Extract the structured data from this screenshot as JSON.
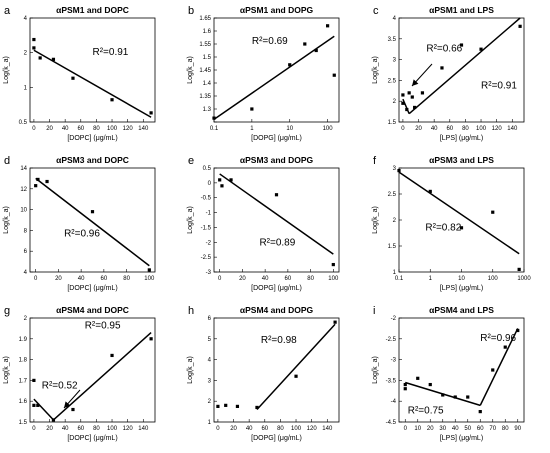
{
  "chart_data": [
    {
      "type": "scatter",
      "panel_label": "a",
      "title": "αPSM1 and DOPC",
      "xlabel": "[DOPC] (μg/mL)",
      "ylabel": "Log(k_a)",
      "xscale": "linear",
      "yscale": "log",
      "xlim": [
        -5,
        155
      ],
      "ylim": [
        0.5,
        4
      ],
      "xticks": [
        0,
        20,
        40,
        60,
        80,
        100,
        120,
        140
      ],
      "yticks": [
        0.5,
        1,
        2,
        4
      ],
      "ytick_labels": [
        "0.5",
        "1",
        "2",
        "4"
      ],
      "points": [
        [
          0,
          2.6
        ],
        [
          0,
          2.2
        ],
        [
          8,
          1.8
        ],
        [
          25,
          1.75
        ],
        [
          50,
          1.2
        ],
        [
          100,
          0.78
        ],
        [
          150,
          0.6
        ]
      ],
      "fits": [
        {
          "x": [
            0,
            150
          ],
          "y": [
            2.1,
            0.55
          ]
        }
      ],
      "annotations": [
        {
          "text": "R²=0.91",
          "x": 75,
          "y": 1.9
        }
      ]
    },
    {
      "type": "scatter",
      "panel_label": "b",
      "title": "αPSM1 and DOPG",
      "xlabel": "[DOPG] (μg/mL)",
      "ylabel": "Log(k_a)",
      "xscale": "log",
      "yscale": "linear",
      "xlim": [
        0.1,
        200
      ],
      "ylim": [
        1.25,
        1.65
      ],
      "xticks": [
        0.1,
        1,
        10,
        100
      ],
      "yticks": [
        1.25,
        1.3,
        1.35,
        1.4,
        1.45,
        1.5,
        1.55,
        1.6,
        1.65
      ],
      "ytick_labels": [
        "",
        "1.3",
        "1.35",
        "1.4",
        "1.45",
        "1.5",
        "1.55",
        "1.6",
        "1.65"
      ],
      "points": [
        [
          0.1,
          1.265
        ],
        [
          1,
          1.3
        ],
        [
          10,
          1.47
        ],
        [
          25,
          1.55
        ],
        [
          50,
          1.525
        ],
        [
          100,
          1.62
        ],
        [
          150,
          1.43
        ]
      ],
      "fits": [
        {
          "x": [
            0.1,
            150
          ],
          "y": [
            1.26,
            1.58
          ]
        }
      ],
      "annotations": [
        {
          "text": "R²=0.69",
          "x": 1,
          "y": 1.55
        }
      ]
    },
    {
      "type": "scatter",
      "panel_label": "c",
      "title": "αPSM1 and LPS",
      "xlabel": "[LPS] (μg/mL)",
      "ylabel": "Log(k_a)",
      "xscale": "linear",
      "yscale": "linear",
      "xlim": [
        -5,
        155
      ],
      "ylim": [
        1.5,
        4
      ],
      "xticks": [
        0,
        20,
        40,
        60,
        80,
        100,
        120,
        140
      ],
      "yticks": [
        1.5,
        2,
        2.5,
        3,
        3.5,
        4
      ],
      "ytick_labels": [
        "1.5",
        "2",
        "2.5",
        "3",
        "3.5",
        "4"
      ],
      "points": [
        [
          0,
          2.15
        ],
        [
          0,
          1.95
        ],
        [
          5,
          1.8
        ],
        [
          8,
          2.2
        ],
        [
          12,
          2.1
        ],
        [
          15,
          1.85
        ],
        [
          25,
          2.2
        ],
        [
          50,
          2.8
        ],
        [
          75,
          3.35
        ],
        [
          100,
          3.25
        ],
        [
          150,
          3.8
        ]
      ],
      "fits": [
        {
          "x": [
            0,
            8
          ],
          "y": [
            2.05,
            1.7
          ]
        },
        {
          "x": [
            8,
            150
          ],
          "y": [
            1.7,
            4.0
          ]
        }
      ],
      "annotations": [
        {
          "text": "R²=0.66",
          "x": 30,
          "y": 3.2
        },
        {
          "text": "R²=0.91",
          "x": 100,
          "y": 2.3
        }
      ]
    },
    {
      "type": "scatter",
      "panel_label": "d",
      "title": "αPSM3 and DOPC",
      "xlabel": "[DOPC] (μg/mL)",
      "ylabel": "Log(k_a)",
      "xscale": "linear",
      "yscale": "linear",
      "xlim": [
        -5,
        105
      ],
      "ylim": [
        4,
        14
      ],
      "xticks": [
        0,
        20,
        40,
        60,
        80,
        100
      ],
      "yticks": [
        4,
        6,
        8,
        10,
        12,
        14
      ],
      "ytick_labels": [
        "4",
        "6",
        "8",
        "10",
        "12",
        "14"
      ],
      "points": [
        [
          0,
          12.3
        ],
        [
          2,
          12.9
        ],
        [
          10,
          12.7
        ],
        [
          50,
          9.8
        ],
        [
          100,
          4.2
        ]
      ],
      "fits": [
        {
          "x": [
            0,
            100
          ],
          "y": [
            13.0,
            4.6
          ]
        }
      ],
      "annotations": [
        {
          "text": "R²=0.96",
          "x": 25,
          "y": 7.4
        }
      ]
    },
    {
      "type": "scatter",
      "panel_label": "e",
      "title": "αPSM3 and DOPG",
      "xlabel": "[DOPG] (μg/mL)",
      "ylabel": "Log(k_a)",
      "xscale": "linear",
      "yscale": "linear",
      "xlim": [
        -5,
        105
      ],
      "ylim": [
        -3,
        0.5
      ],
      "xticks": [
        0,
        20,
        40,
        60,
        80,
        100
      ],
      "yticks": [
        -3,
        -2.5,
        -2,
        -1.5,
        -1,
        -0.5,
        0,
        0.5
      ],
      "ytick_labels": [
        "-3",
        "-2.5",
        "-2",
        "-1.5",
        "-1",
        "-0.5",
        "0",
        "0.5"
      ],
      "points": [
        [
          0,
          0.1
        ],
        [
          2,
          -0.1
        ],
        [
          10,
          0.1
        ],
        [
          50,
          -0.4
        ],
        [
          100,
          -2.75
        ]
      ],
      "fits": [
        {
          "x": [
            0,
            100
          ],
          "y": [
            0.3,
            -2.4
          ]
        }
      ],
      "annotations": [
        {
          "text": "R²=0.89",
          "x": 35,
          "y": -2.1
        }
      ]
    },
    {
      "type": "scatter",
      "panel_label": "f",
      "title": "αPSM3 and LPS",
      "xlabel": "[LPS] (μg/mL)",
      "ylabel": "Log(k_a)",
      "xscale": "log",
      "yscale": "linear",
      "xlim": [
        0.1,
        1000
      ],
      "ylim": [
        1,
        3
      ],
      "xticks": [
        0.1,
        1,
        10,
        100,
        1000
      ],
      "yticks": [
        1,
        1.5,
        2,
        2.5,
        3
      ],
      "ytick_labels": [
        "1",
        "1.5",
        "2",
        "2.5",
        "3"
      ],
      "points": [
        [
          0.1,
          2.95
        ],
        [
          1,
          2.55
        ],
        [
          10,
          1.85
        ],
        [
          100,
          2.15
        ],
        [
          700,
          1.05
        ]
      ],
      "fits": [
        {
          "x": [
            0.1,
            700
          ],
          "y": [
            2.92,
            1.35
          ]
        }
      ],
      "annotations": [
        {
          "text": "R²=0.82",
          "x": 0.7,
          "y": 1.8
        }
      ]
    },
    {
      "type": "scatter",
      "panel_label": "g",
      "title": "αPSM4 and DOPC",
      "xlabel": "[DOPC] (μg/mL)",
      "ylabel": "Log(k_a)",
      "xscale": "linear",
      "yscale": "linear",
      "xlim": [
        -5,
        155
      ],
      "ylim": [
        1.5,
        2.0
      ],
      "xticks": [
        0,
        20,
        40,
        60,
        80,
        100,
        120,
        140
      ],
      "yticks": [
        1.5,
        1.6,
        1.7,
        1.8,
        1.9,
        2.0
      ],
      "ytick_labels": [
        "1.5",
        "1.6",
        "1.7",
        "1.8",
        "1.9",
        "2"
      ],
      "points": [
        [
          0,
          1.7
        ],
        [
          0,
          1.58
        ],
        [
          5,
          1.58
        ],
        [
          25,
          1.51
        ],
        [
          50,
          1.56
        ],
        [
          100,
          1.82
        ],
        [
          150,
          1.9
        ]
      ],
      "fits": [
        {
          "x": [
            0,
            25
          ],
          "y": [
            1.61,
            1.51
          ]
        },
        {
          "x": [
            25,
            150
          ],
          "y": [
            1.51,
            1.93
          ]
        }
      ],
      "annotations": [
        {
          "text": "R²=0.95",
          "x": 65,
          "y": 1.95
        },
        {
          "text": "R²=0.52",
          "x": 10,
          "y": 1.66
        }
      ]
    },
    {
      "type": "scatter",
      "panel_label": "h",
      "title": "αPSM4 and DOPG",
      "xlabel": "[DOPG] (μg/mL)",
      "ylabel": "Log(k_a)",
      "xscale": "linear",
      "yscale": "linear",
      "xlim": [
        -5,
        155
      ],
      "ylim": [
        1,
        6
      ],
      "xticks": [
        0,
        20,
        40,
        60,
        80,
        100,
        120,
        140
      ],
      "yticks": [
        1,
        2,
        3,
        4,
        5,
        6
      ],
      "ytick_labels": [
        "1",
        "2",
        "3",
        "4",
        "5",
        "6"
      ],
      "points": [
        [
          0,
          1.75
        ],
        [
          10,
          1.8
        ],
        [
          25,
          1.75
        ],
        [
          50,
          1.7
        ],
        [
          100,
          3.2
        ],
        [
          150,
          5.8
        ]
      ],
      "fits": [
        {
          "x": [
            50,
            150
          ],
          "y": [
            1.6,
            5.7
          ]
        }
      ],
      "annotations": [
        {
          "text": "R²=0.98",
          "x": 55,
          "y": 4.8
        }
      ]
    },
    {
      "type": "scatter",
      "panel_label": "i",
      "title": "αPSM4 and LPS",
      "xlabel": "[LPS] (μg/mL)",
      "ylabel": "Log(k_a)",
      "xscale": "linear",
      "yscale": "linear",
      "xlim": [
        -5,
        95
      ],
      "ylim": [
        -4.5,
        -2
      ],
      "xticks": [
        0,
        10,
        20,
        30,
        40,
        50,
        60,
        70,
        80,
        90
      ],
      "yticks": [
        -4.5,
        -4,
        -3.5,
        -3,
        -2.5,
        -2
      ],
      "ytick_labels": [
        "-4.5",
        "-4",
        "-3.5",
        "-3",
        "-2.5",
        "-2"
      ],
      "points": [
        [
          0,
          -3.6
        ],
        [
          0,
          -3.7
        ],
        [
          10,
          -3.45
        ],
        [
          20,
          -3.6
        ],
        [
          30,
          -3.85
        ],
        [
          40,
          -3.9
        ],
        [
          50,
          -3.9
        ],
        [
          60,
          -4.25
        ],
        [
          70,
          -3.25
        ],
        [
          80,
          -2.7
        ],
        [
          90,
          -2.3
        ]
      ],
      "fits": [
        {
          "x": [
            0,
            60
          ],
          "y": [
            -3.55,
            -4.1
          ]
        },
        {
          "x": [
            60,
            90
          ],
          "y": [
            -4.1,
            -2.25
          ]
        }
      ],
      "annotations": [
        {
          "text": "R²=0.96",
          "x": 60,
          "y": -2.55
        },
        {
          "text": "R²=0.75",
          "x": 2,
          "y": -4.3
        }
      ]
    }
  ]
}
